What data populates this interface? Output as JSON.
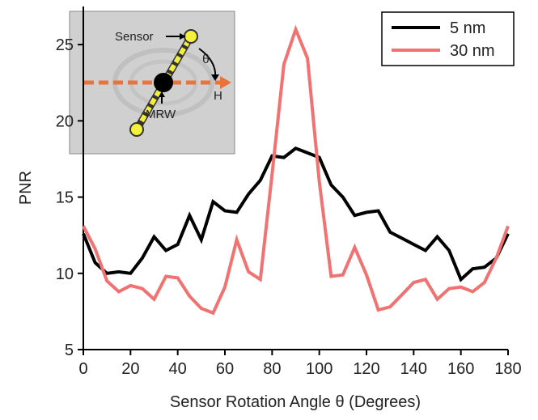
{
  "chart_data": {
    "type": "line",
    "x_label": "Sensor Rotation Angle θ (Degrees)",
    "y_label": "PNR",
    "x": [
      0,
      5,
      10,
      15,
      20,
      25,
      30,
      35,
      40,
      45,
      50,
      55,
      60,
      65,
      70,
      75,
      80,
      85,
      90,
      95,
      100,
      105,
      110,
      115,
      120,
      125,
      130,
      135,
      140,
      145,
      150,
      155,
      160,
      165,
      170,
      175,
      180
    ],
    "series": [
      {
        "name": "5 nm",
        "color": "#000000",
        "values": [
          12.6,
          10.7,
          10.0,
          10.1,
          10.0,
          11.0,
          12.4,
          11.5,
          11.9,
          13.8,
          12.2,
          14.7,
          14.1,
          14.0,
          15.2,
          16.1,
          17.7,
          17.6,
          18.2,
          17.9,
          17.6,
          15.8,
          15.0,
          13.8,
          14.0,
          14.1,
          12.7,
          12.3,
          11.9,
          11.5,
          12.4,
          11.5,
          9.6,
          10.3,
          10.4,
          11.0,
          12.6
        ]
      },
      {
        "name": "30 nm",
        "color": "#f27272",
        "values": [
          13.1,
          11.6,
          9.5,
          8.8,
          9.2,
          9.0,
          8.3,
          9.8,
          9.7,
          8.5,
          7.7,
          7.4,
          9.1,
          12.2,
          10.1,
          9.6,
          16.5,
          23.7,
          26.0,
          24.1,
          16.0,
          9.8,
          9.9,
          11.7,
          9.9,
          7.6,
          7.8,
          8.6,
          9.4,
          9.6,
          8.3,
          9.0,
          9.1,
          8.8,
          9.4,
          11.0,
          13.1
        ]
      }
    ],
    "xlim": [
      0,
      180
    ],
    "xticks": [
      0,
      20,
      40,
      60,
      80,
      100,
      120,
      140,
      160,
      180
    ],
    "ylim": [
      5,
      27.5
    ],
    "yticks": [
      5,
      10,
      15,
      20,
      25
    ],
    "legend": "top-right",
    "inset": {
      "labels": {
        "sensor": "Sensor",
        "theta": "θ",
        "h": "H",
        "mrw": "MRW"
      }
    }
  }
}
